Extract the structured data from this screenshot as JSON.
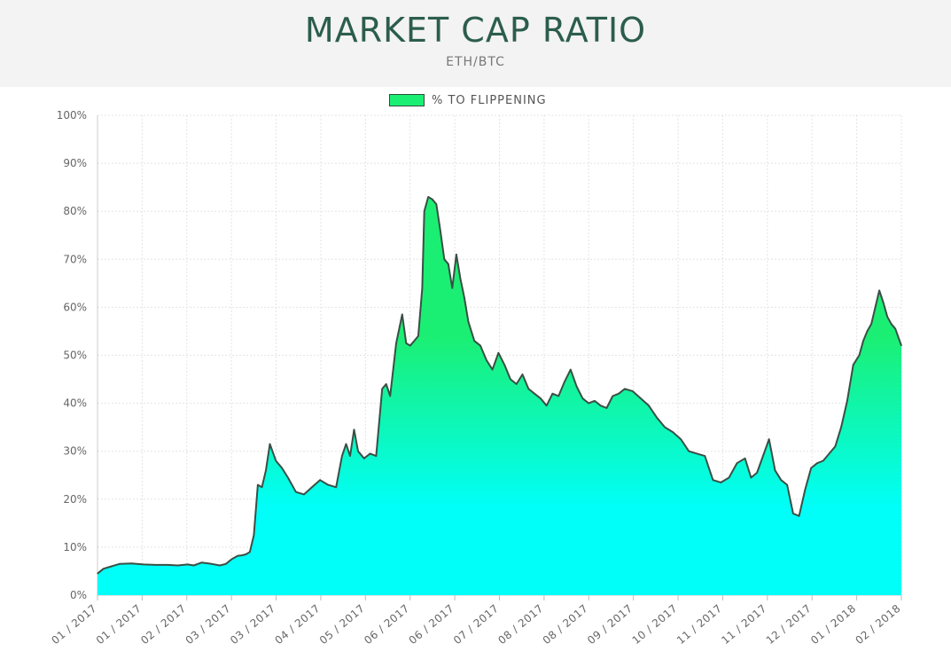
{
  "header": {
    "title": "MARKET CAP RATIO",
    "subtitle": "ETH/BTC"
  },
  "legend": {
    "label": "% TO FLIPPENING",
    "color": "#1bef73"
  },
  "colors": {
    "fill_top": "#1bef73",
    "fill_bottom": "#00fff8",
    "line": "#3a4f45",
    "grid": "#e4e4e4"
  },
  "chart_data": {
    "type": "area",
    "title": "MARKET CAP RATIO",
    "subtitle": "ETH/BTC",
    "xlabel": "",
    "ylabel": "",
    "ylim": [
      0,
      100
    ],
    "y_ticks": [
      "0%",
      "10%",
      "20%",
      "30%",
      "40%",
      "50%",
      "60%",
      "70%",
      "80%",
      "90%",
      "100%"
    ],
    "x_ticks": [
      "01 / 2017",
      "01 / 2017",
      "02 / 2017",
      "03 / 2017",
      "03 / 2017",
      "04 / 2017",
      "05 / 2017",
      "06 / 2017",
      "06 / 2017",
      "07 / 2017",
      "08 / 2017",
      "08 / 2017",
      "09 / 2017",
      "10 / 2017",
      "11 / 2017",
      "11 / 2017",
      "12 / 2017",
      "01 / 2018",
      "02 / 2018"
    ],
    "x_range": [
      "2017-01-01",
      "2018-02-06"
    ],
    "grid": true,
    "legend_position": "top-center",
    "series": [
      {
        "name": "% TO FLIPPENING",
        "x": [
          "2017-01-01",
          "2017-01-04",
          "2017-01-08",
          "2017-01-12",
          "2017-01-18",
          "2017-01-24",
          "2017-01-30",
          "2017-02-05",
          "2017-02-10",
          "2017-02-15",
          "2017-02-18",
          "2017-02-22",
          "2017-02-27",
          "2017-03-03",
          "2017-03-06",
          "2017-03-09",
          "2017-03-12",
          "2017-03-14",
          "2017-03-16",
          "2017-03-18",
          "2017-03-20",
          "2017-03-22",
          "2017-03-24",
          "2017-03-26",
          "2017-03-28",
          "2017-03-31",
          "2017-04-03",
          "2017-04-06",
          "2017-04-10",
          "2017-04-14",
          "2017-04-18",
          "2017-04-22",
          "2017-04-26",
          "2017-04-30",
          "2017-05-03",
          "2017-05-05",
          "2017-05-07",
          "2017-05-09",
          "2017-05-11",
          "2017-05-14",
          "2017-05-17",
          "2017-05-20",
          "2017-05-23",
          "2017-05-25",
          "2017-05-27",
          "2017-05-30",
          "2017-06-02",
          "2017-06-04",
          "2017-06-06",
          "2017-06-08",
          "2017-06-10",
          "2017-06-12",
          "2017-06-13",
          "2017-06-15",
          "2017-06-17",
          "2017-06-19",
          "2017-06-21",
          "2017-06-23",
          "2017-06-25",
          "2017-06-27",
          "2017-06-29",
          "2017-07-01",
          "2017-07-03",
          "2017-07-05",
          "2017-07-08",
          "2017-07-11",
          "2017-07-14",
          "2017-07-17",
          "2017-07-20",
          "2017-07-23",
          "2017-07-26",
          "2017-07-29",
          "2017-08-01",
          "2017-08-04",
          "2017-08-07",
          "2017-08-10",
          "2017-08-13",
          "2017-08-16",
          "2017-08-19",
          "2017-08-22",
          "2017-08-25",
          "2017-08-28",
          "2017-08-31",
          "2017-09-03",
          "2017-09-06",
          "2017-09-09",
          "2017-09-12",
          "2017-09-15",
          "2017-09-18",
          "2017-09-21",
          "2017-09-25",
          "2017-09-29",
          "2017-10-03",
          "2017-10-07",
          "2017-10-11",
          "2017-10-15",
          "2017-10-19",
          "2017-10-23",
          "2017-10-27",
          "2017-10-31",
          "2017-11-04",
          "2017-11-08",
          "2017-11-12",
          "2017-11-16",
          "2017-11-20",
          "2017-11-23",
          "2017-11-26",
          "2017-11-29",
          "2017-12-02",
          "2017-12-05",
          "2017-12-08",
          "2017-12-11",
          "2017-12-14",
          "2017-12-17",
          "2017-12-20",
          "2017-12-23",
          "2017-12-26",
          "2017-12-29",
          "2018-01-01",
          "2018-01-04",
          "2018-01-07",
          "2018-01-10",
          "2018-01-13",
          "2018-01-16",
          "2018-01-18",
          "2018-01-20",
          "2018-01-22",
          "2018-01-24",
          "2018-01-26",
          "2018-01-28",
          "2018-01-30",
          "2018-02-01",
          "2018-02-03",
          "2018-02-06"
        ],
        "values": [
          4.5,
          5.5,
          6.0,
          6.5,
          6.6,
          6.4,
          6.3,
          6.3,
          6.2,
          6.4,
          6.2,
          6.8,
          6.5,
          6.2,
          6.5,
          7.5,
          8.2,
          8.3,
          8.5,
          9.0,
          12.5,
          23.0,
          22.5,
          26.0,
          31.5,
          28.0,
          26.5,
          24.5,
          21.5,
          21.0,
          22.5,
          24.0,
          23.0,
          22.5,
          29.0,
          31.5,
          29.0,
          34.5,
          30.0,
          28.5,
          29.5,
          29.0,
          43.0,
          44.0,
          41.5,
          52.5,
          58.5,
          52.5,
          52.0,
          53.0,
          54.0,
          64.0,
          80.0,
          83.0,
          82.5,
          81.5,
          76.0,
          70.0,
          69.0,
          64.0,
          71.0,
          66.0,
          62.0,
          57.0,
          53.0,
          52.0,
          49.0,
          47.0,
          50.5,
          48.0,
          45.0,
          44.0,
          46.0,
          43.0,
          42.0,
          41.0,
          39.5,
          42.0,
          41.5,
          44.5,
          47.0,
          43.5,
          41.0,
          40.0,
          40.5,
          39.5,
          39.0,
          41.5,
          42.0,
          43.0,
          42.5,
          41.0,
          39.5,
          37.0,
          35.0,
          34.0,
          32.5,
          30.0,
          29.5,
          29.0,
          24.0,
          23.5,
          24.5,
          27.5,
          28.5,
          24.5,
          25.5,
          29.0,
          32.5,
          26.0,
          24.0,
          23.0,
          17.0,
          16.5,
          22.0,
          26.5,
          27.5,
          28.0,
          29.5,
          31.0,
          35.0,
          40.5,
          48.0,
          50.0,
          53.0,
          55.0,
          56.5,
          60.0,
          63.5,
          61.0,
          58.0,
          56.5,
          55.5,
          52.0
        ]
      }
    ]
  }
}
